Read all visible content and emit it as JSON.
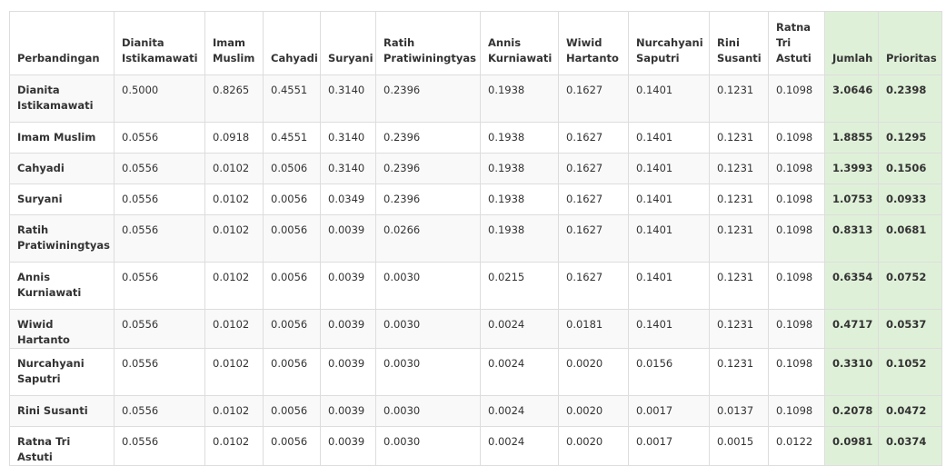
{
  "table": {
    "headers": [
      "Perbandingan",
      "Dianita Istikamawati",
      "Imam Muslim",
      "Cahyadi",
      "Suryani",
      "Ratih Pratiwiningtyas",
      "Annis Kurniawati",
      "Wiwid Hartanto",
      "Nurcahyani Saputri",
      "Rini Susanti",
      "Ratna Tri Astuti",
      "Jumlah",
      "Prioritas"
    ],
    "rows": [
      {
        "name": "Dianita Istikamawati",
        "cells": [
          "0.5000",
          "0.8265",
          "0.4551",
          "0.3140",
          "0.2396",
          "0.1938",
          "0.1627",
          "0.1401",
          "0.1231",
          "0.1098"
        ],
        "jumlah": "3.0646",
        "prioritas": "0.2398"
      },
      {
        "name": "Imam Muslim",
        "cells": [
          "0.0556",
          "0.0918",
          "0.4551",
          "0.3140",
          "0.2396",
          "0.1938",
          "0.1627",
          "0.1401",
          "0.1231",
          "0.1098"
        ],
        "jumlah": "1.8855",
        "prioritas": "0.1295"
      },
      {
        "name": "Cahyadi",
        "cells": [
          "0.0556",
          "0.0102",
          "0.0506",
          "0.3140",
          "0.2396",
          "0.1938",
          "0.1627",
          "0.1401",
          "0.1231",
          "0.1098"
        ],
        "jumlah": "1.3993",
        "prioritas": "0.1506"
      },
      {
        "name": "Suryani",
        "cells": [
          "0.0556",
          "0.0102",
          "0.0056",
          "0.0349",
          "0.2396",
          "0.1938",
          "0.1627",
          "0.1401",
          "0.1231",
          "0.1098"
        ],
        "jumlah": "1.0753",
        "prioritas": "0.0933"
      },
      {
        "name": "Ratih Pratiwiningtyas",
        "cells": [
          "0.0556",
          "0.0102",
          "0.0056",
          "0.0039",
          "0.0266",
          "0.1938",
          "0.1627",
          "0.1401",
          "0.1231",
          "0.1098"
        ],
        "jumlah": "0.8313",
        "prioritas": "0.0681"
      },
      {
        "name": "Annis Kurniawati",
        "cells": [
          "0.0556",
          "0.0102",
          "0.0056",
          "0.0039",
          "0.0030",
          "0.0215",
          "0.1627",
          "0.1401",
          "0.1231",
          "0.1098"
        ],
        "jumlah": "0.6354",
        "prioritas": "0.0752"
      },
      {
        "name": "Wiwid Hartanto",
        "cells": [
          "0.0556",
          "0.0102",
          "0.0056",
          "0.0039",
          "0.0030",
          "0.0024",
          "0.0181",
          "0.1401",
          "0.1231",
          "0.1098"
        ],
        "jumlah": "0.4717",
        "prioritas": "0.0537"
      },
      {
        "name": "Nurcahyani Saputri",
        "cells": [
          "0.0556",
          "0.0102",
          "0.0056",
          "0.0039",
          "0.0030",
          "0.0024",
          "0.0020",
          "0.0156",
          "0.1231",
          "0.1098"
        ],
        "jumlah": "0.3310",
        "prioritas": "0.1052"
      },
      {
        "name": "Rini Susanti",
        "cells": [
          "0.0556",
          "0.0102",
          "0.0056",
          "0.0039",
          "0.0030",
          "0.0024",
          "0.0020",
          "0.0017",
          "0.0137",
          "0.1098"
        ],
        "jumlah": "0.2078",
        "prioritas": "0.0472"
      },
      {
        "name": "Ratna Tri Astuti",
        "cells": [
          "0.0556",
          "0.0102",
          "0.0056",
          "0.0039",
          "0.0030",
          "0.0024",
          "0.0020",
          "0.0017",
          "0.0015",
          "0.0122"
        ],
        "jumlah": "0.0981",
        "prioritas": "0.0374"
      }
    ]
  }
}
